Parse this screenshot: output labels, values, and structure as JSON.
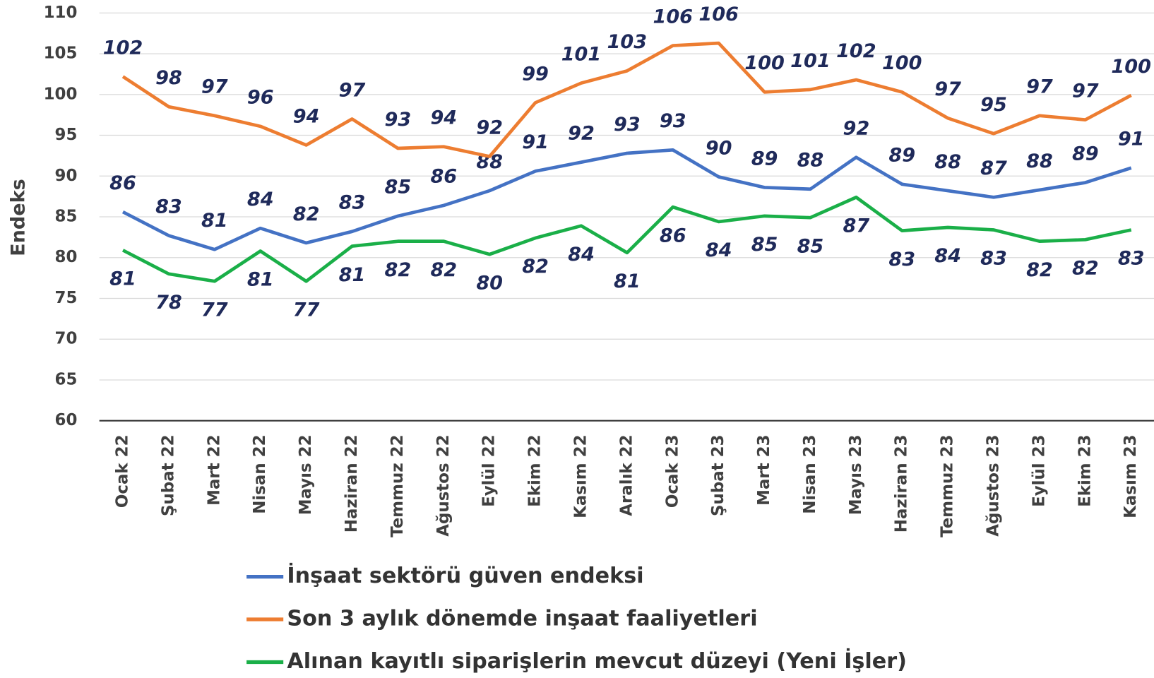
{
  "chart_data": {
    "type": "line",
    "y_label": "Endeks",
    "categories": [
      "Ocak 22",
      "Şubat 22",
      "Mart 22",
      "Nisan 22",
      "Mayıs 22",
      "Haziran 22",
      "Temmuz 22",
      "Ağustos 22",
      "Eylül 22",
      "Ekim 22",
      "Kasım 22",
      "Aralık 22",
      "Ocak 23",
      "Şubat 23",
      "Mart 23",
      "Nisan 23",
      "Mayıs 23",
      "Haziran 23",
      "Temmuz 23",
      "Ağustos 23",
      "Eylül 23",
      "Ekim 23",
      "Kasım 23"
    ],
    "series": [
      {
        "name": "İnşaat sektörü güven endeksi",
        "color": "#4472c4",
        "values": [
          85.6,
          82.7,
          81.0,
          83.6,
          81.8,
          83.2,
          85.1,
          86.4,
          88.2,
          90.6,
          91.7,
          92.8,
          93.2,
          89.9,
          88.6,
          88.4,
          92.3,
          89.0,
          88.2,
          87.4,
          88.3,
          89.2,
          91.0
        ],
        "value_labels": [
          "86",
          "83",
          "81",
          "84",
          "82",
          "83",
          "85",
          "86",
          "88",
          "91",
          "92",
          "93",
          "93",
          "90",
          "89",
          "88",
          "92",
          "89",
          "88",
          "87",
          "88",
          "89",
          "91"
        ]
      },
      {
        "name": "Son 3 aylık dönemde inşaat faaliyetleri",
        "color": "#ed7d31",
        "values": [
          102.2,
          98.5,
          97.4,
          96.1,
          93.8,
          97.0,
          93.4,
          93.6,
          92.4,
          99.0,
          101.4,
          102.9,
          106.0,
          106.3,
          100.3,
          100.6,
          101.8,
          100.3,
          97.1,
          95.2,
          97.4,
          96.9,
          99.9
        ],
        "value_labels": [
          "102",
          "98",
          "97",
          "96",
          "94",
          "97",
          "93",
          "94",
          "92",
          "99",
          "101",
          "103",
          "106",
          "106",
          "100",
          "101",
          "102",
          "100",
          "97",
          "95",
          "97",
          "97",
          "100"
        ]
      },
      {
        "name": "Alınan kayıtlı siparişlerin mevcut düzeyi (Yeni İşler)",
        "color": "#1aaf48",
        "values": [
          80.9,
          78.0,
          77.1,
          80.8,
          77.1,
          81.4,
          82.0,
          82.0,
          80.4,
          82.4,
          83.9,
          80.6,
          86.2,
          84.4,
          85.1,
          84.9,
          87.4,
          83.3,
          83.7,
          83.4,
          82.0,
          82.2,
          83.4
        ],
        "value_labels": [
          "81",
          "78",
          "77",
          "81",
          "77",
          "81",
          "82",
          "82",
          "80",
          "82",
          "84",
          "81",
          "86",
          "84",
          "85",
          "85",
          "87",
          "83",
          "84",
          "83",
          "82",
          "82",
          "83"
        ]
      }
    ],
    "ylim": [
      60,
      110
    ],
    "yticks": [
      60,
      65,
      70,
      75,
      80,
      85,
      90,
      95,
      100,
      105,
      110
    ],
    "grid": true
  }
}
